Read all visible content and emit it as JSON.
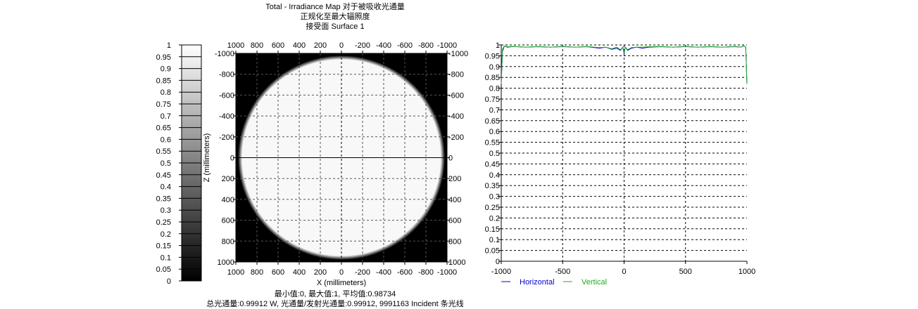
{
  "title_lines": [
    "Total - Irradiance Map 对于被吸收光通量",
    "正规化至最大辐照度",
    "接受面 Surface 1"
  ],
  "footer_lines": [
    "最小值:0, 最大值:1, 平均值:0.98734",
    "总光通量:0.99912 W, 光通量/发射光通量:0.99912, 9991163 Incident 条光线"
  ],
  "colorbar": {
    "ticks": [
      "0",
      "0.05",
      "0.1",
      "0.15",
      "0.2",
      "0.25",
      "0.3",
      "0.35",
      "0.4",
      "0.45",
      "0.5",
      "0.55",
      "0.6",
      "0.65",
      "0.7",
      "0.75",
      "0.8",
      "0.85",
      "0.9",
      "0.95",
      "1"
    ]
  },
  "chart_data": [
    {
      "type": "heatmap",
      "description_note": "",
      "x_ticks": [
        "1000",
        "800",
        "600",
        "400",
        "200",
        "0",
        "-200",
        "-400",
        "-600",
        "-800",
        "-1000"
      ],
      "y_ticks": [
        "-1000",
        "-800",
        "-600",
        "-400",
        "-200",
        "0",
        "200",
        "400",
        "600",
        "800",
        "1000"
      ],
      "xlabel": "X (millimeters)",
      "ylabel": "Z (millimeters)",
      "xlim": [
        1000,
        -1000
      ],
      "ylim": [
        -1000,
        1000
      ],
      "spot": {
        "shape": "disc",
        "radius_data": 980,
        "inside_value": 0.99,
        "outside_value": 0,
        "edge_softness_data": 40
      },
      "crosshair": true,
      "grid": true
    },
    {
      "type": "line",
      "xlim": [
        -1000,
        1000
      ],
      "ylim": [
        0,
        1
      ],
      "x_ticks": [
        "-1000",
        "-500",
        "0",
        "500",
        "1000"
      ],
      "y_ticks": [
        "0",
        "0.05",
        "0.1",
        "0.15",
        "0.2",
        "0.25",
        "0.3",
        "0.35",
        "0.4",
        "0.45",
        "0.5",
        "0.55",
        "0.6",
        "0.65",
        "0.7",
        "0.75",
        "0.8",
        "0.85",
        "0.9",
        "0.95",
        "1"
      ],
      "grid": true,
      "legend_position": "bottom",
      "series": [
        {
          "name": "Horizontal",
          "color": "#0000cc",
          "x": [
            -1000,
            -990,
            -975,
            -950,
            -900,
            -800,
            -700,
            -600,
            -500,
            -400,
            -300,
            -200,
            -150,
            -100,
            -60,
            -30,
            -10,
            0,
            10,
            30,
            60,
            100,
            150,
            200,
            300,
            400,
            500,
            600,
            700,
            800,
            900,
            950,
            975,
            990,
            1000
          ],
          "y": [
            0.82,
            0.97,
            0.995,
            0.99,
            0.993,
            0.99,
            0.992,
            0.99,
            0.993,
            0.99,
            0.992,
            0.985,
            0.99,
            0.98,
            0.985,
            0.975,
            0.99,
            0.96,
            0.99,
            0.975,
            0.985,
            0.99,
            0.985,
            0.99,
            0.992,
            0.99,
            0.993,
            0.99,
            0.992,
            0.99,
            0.993,
            0.99,
            0.995,
            0.99,
            0.82
          ]
        },
        {
          "name": "Vertical",
          "color": "#22aa22",
          "x": [
            -1000,
            -990,
            -975,
            -950,
            -900,
            -800,
            -700,
            -600,
            -500,
            -400,
            -300,
            -200,
            -150,
            -100,
            -60,
            -30,
            -10,
            0,
            10,
            30,
            60,
            100,
            150,
            200,
            300,
            400,
            500,
            600,
            700,
            800,
            900,
            950,
            975,
            990,
            1000
          ],
          "y": [
            0.82,
            0.98,
            0.995,
            0.992,
            0.993,
            0.99,
            0.993,
            0.99,
            0.992,
            0.99,
            0.993,
            0.988,
            0.99,
            0.982,
            0.99,
            0.978,
            0.99,
            0.965,
            0.99,
            0.978,
            0.988,
            0.99,
            0.99,
            0.992,
            0.993,
            0.99,
            0.992,
            0.99,
            0.993,
            0.99,
            0.992,
            0.99,
            0.995,
            0.99,
            0.82
          ]
        }
      ]
    }
  ],
  "colors": {
    "background": "#ffffff",
    "axis": "#000000",
    "grid": "#000000"
  }
}
